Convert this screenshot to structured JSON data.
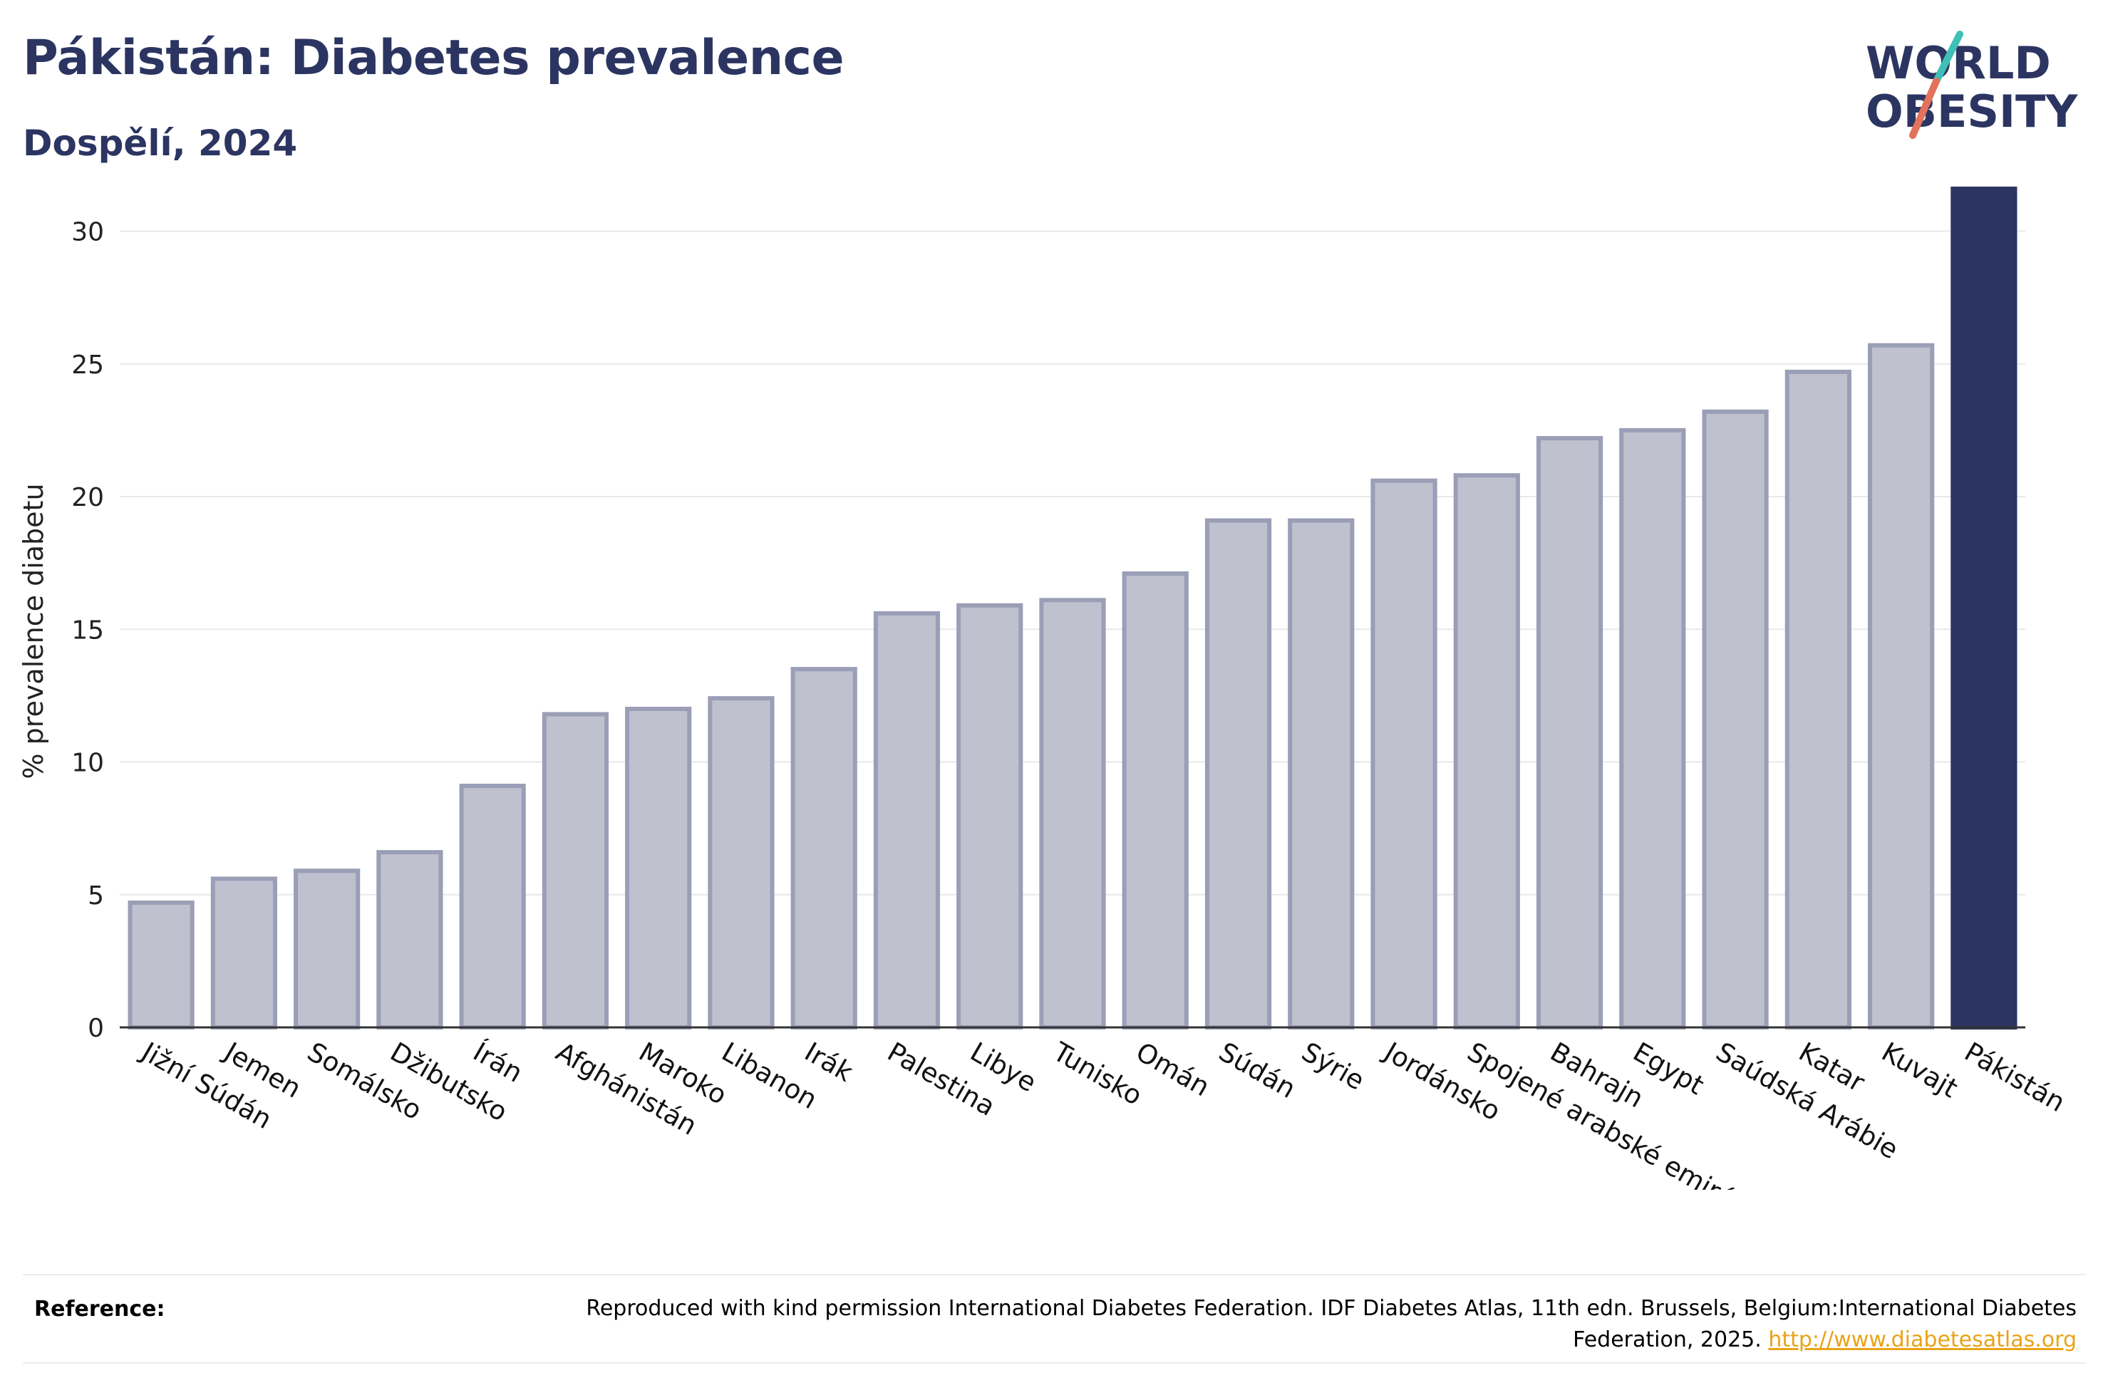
{
  "header": {
    "title": "Pákistán: Diabetes prevalence",
    "subtitle": "Dospělí, 2024"
  },
  "logo": {
    "line1": "WORLD",
    "line2": "OBESITY"
  },
  "colors": {
    "highlight": "#2c3561",
    "bar_fill": "#bfc1cf",
    "bar_stroke": "#9a9eb6",
    "grid": "#e8e8e8",
    "logo_teal": "#3fbfb8",
    "logo_coral": "#e2725b"
  },
  "chart_data": {
    "type": "bar",
    "ylabel": "% prevalence diabetu",
    "ylim": [
      0,
      32
    ],
    "yticks": [
      0,
      5,
      10,
      15,
      20,
      25,
      30
    ],
    "grid": true,
    "highlight_category": "Pákistán",
    "categories": [
      "Jižní Súdán",
      "Jemen",
      "Somálsko",
      "Džibutsko",
      "Írán",
      "Afghánistán",
      "Maroko",
      "Libanon",
      "Irák",
      "Palestina",
      "Libye",
      "Tunisko",
      "Omán",
      "Súdán",
      "Sýrie",
      "Jordánsko",
      "Spojené arabské emiráty",
      "Bahrajn",
      "Egypt",
      "Saúdská Arábie",
      "Katar",
      "Kuvajt",
      "Pákistán"
    ],
    "values": [
      4.7,
      5.6,
      5.9,
      6.6,
      9.1,
      11.8,
      12.0,
      12.4,
      13.5,
      15.6,
      15.9,
      16.1,
      17.1,
      19.1,
      19.1,
      20.6,
      20.8,
      22.2,
      22.5,
      23.2,
      24.7,
      25.7,
      31.6
    ]
  },
  "footer": {
    "reference_label": "Reference:",
    "reference_text": "Reproduced with kind permission International Diabetes Federation. IDF Diabetes Atlas, 11th edn. Brussels, Belgium:International Diabetes Federation, 2025.",
    "reference_link": "http://www.diabetesatlas.org"
  }
}
